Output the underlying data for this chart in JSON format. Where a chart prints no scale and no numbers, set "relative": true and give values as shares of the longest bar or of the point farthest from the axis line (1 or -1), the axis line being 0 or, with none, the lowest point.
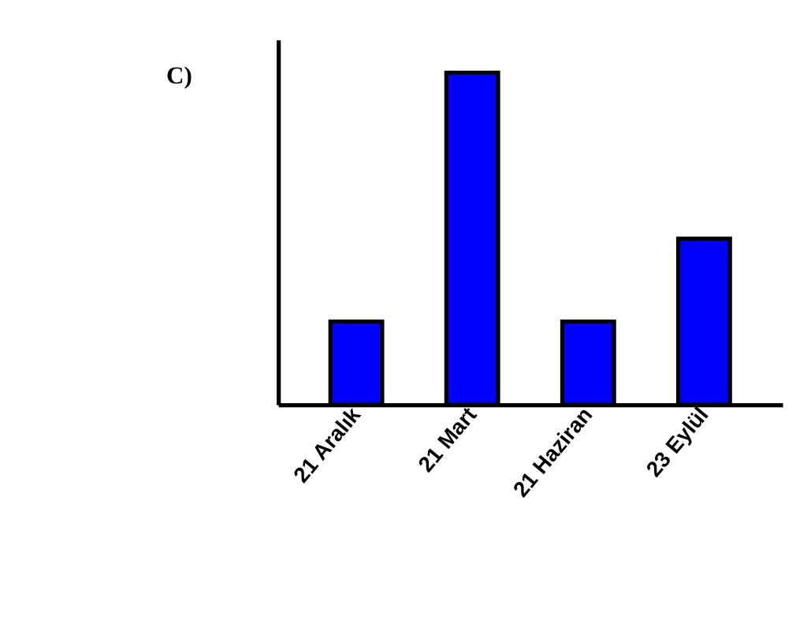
{
  "chart_data": {
    "type": "bar",
    "title": "C)",
    "relative": true,
    "categories": [
      "21 Aralık",
      "21 Mart",
      "21 Haziran",
      "23 Eylül"
    ],
    "values": [
      0.25,
      1,
      0.25,
      0.5
    ],
    "color": "#0000ff",
    "grid": false
  }
}
